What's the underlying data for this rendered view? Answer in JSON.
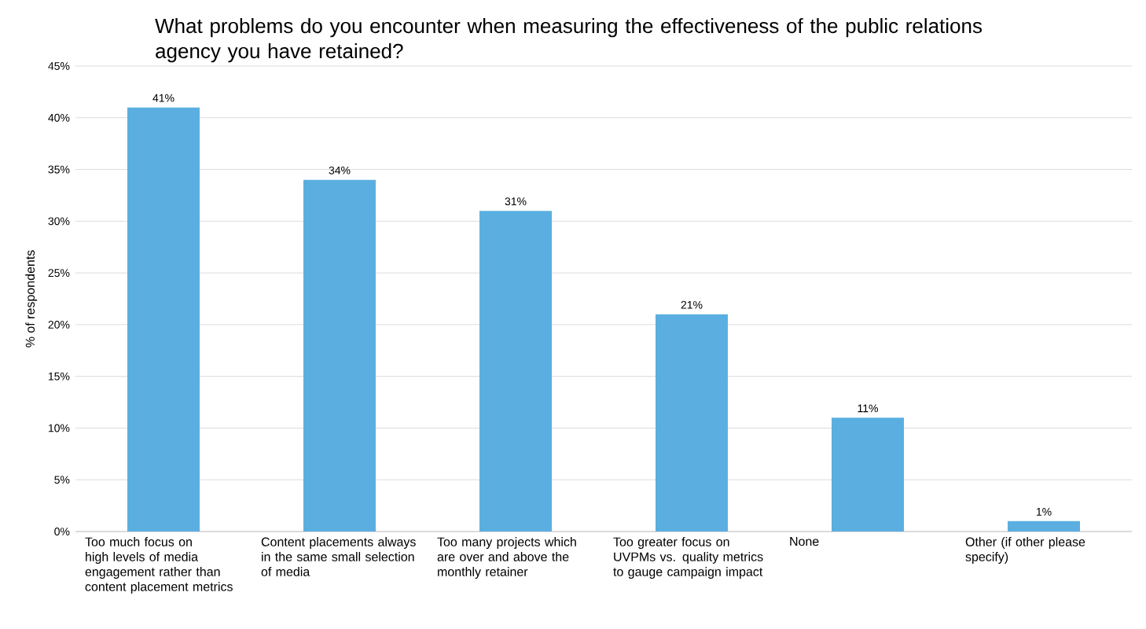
{
  "chart_data": {
    "type": "bar",
    "title": "What problems do you encounter when measuring the effectiveness of the public relations agency you have retained?",
    "ylabel": "% of respondents",
    "categories": [
      "Too much focus on high levels of media engagement rather than content placement metrics",
      "Content placements always in the same small selection of media",
      "Too many projects which are over and above the monthly retainer",
      "Too greater focus on UVPMs vs. quality metrics to gauge campaign impact",
      "None",
      "Other (if other please specify)"
    ],
    "values": [
      41,
      34,
      31,
      21,
      11,
      1
    ],
    "value_labels": [
      "41%",
      "34%",
      "31%",
      "21%",
      "11%",
      "1%"
    ],
    "color": "#5aafe0",
    "ylim": [
      0,
      45
    ],
    "yticks": [
      {
        "value": 0,
        "label": "0%"
      },
      {
        "value": 5,
        "label": "5%"
      },
      {
        "value": 10,
        "label": "10%"
      },
      {
        "value": 15,
        "label": "15%"
      },
      {
        "value": 20,
        "label": "20%"
      },
      {
        "value": 25,
        "label": "25%"
      },
      {
        "value": 30,
        "label": "30%"
      },
      {
        "value": 35,
        "label": "35%"
      },
      {
        "value": 40,
        "label": "40%"
      },
      {
        "value": 45,
        "label": "45%"
      }
    ],
    "grid": "y"
  }
}
